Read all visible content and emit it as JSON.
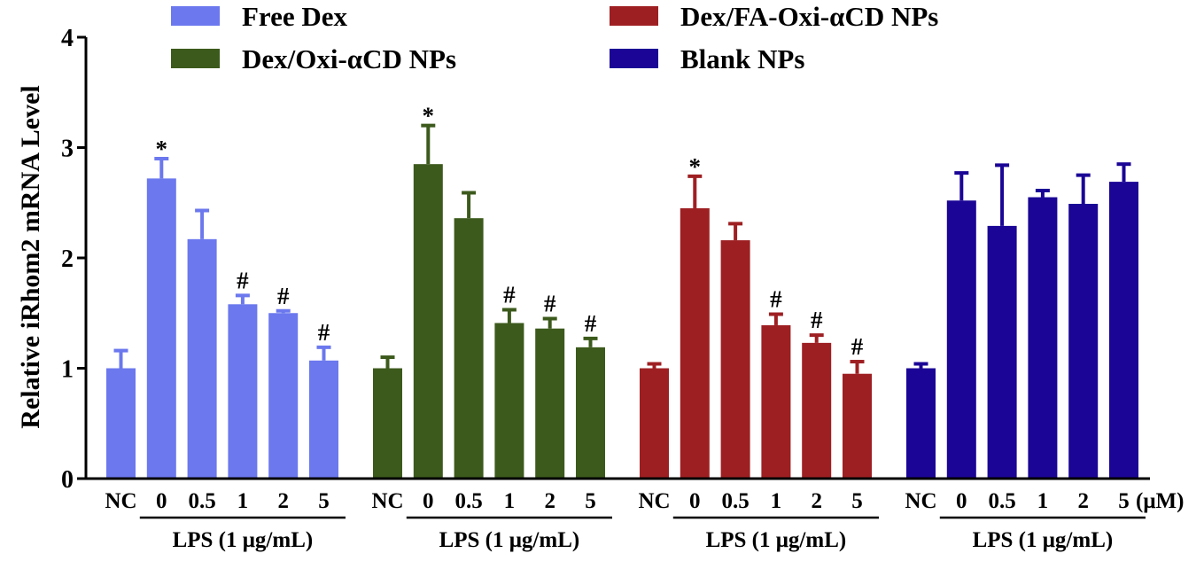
{
  "chart_data": {
    "type": "bar",
    "ylabel": "Relative iRhom2 mRNA Level",
    "ylim": [
      0,
      4
    ],
    "yticks": [
      "0",
      "1",
      "2",
      "3",
      "4"
    ],
    "categories": [
      "NC",
      "0",
      "0.5",
      "1",
      "2",
      "5"
    ],
    "group_label": "LPS (1 μg/mL)",
    "unit_label": "(μM)",
    "legend_position": "top",
    "grid": false,
    "series": [
      {
        "name": "Free Dex",
        "color": "#6b78ee",
        "values": [
          1.0,
          2.72,
          2.17,
          1.58,
          1.5,
          1.07
        ],
        "errors": [
          0.16,
          0.18,
          0.26,
          0.08,
          0.02,
          0.12
        ],
        "marks": [
          "",
          "*",
          "",
          "#",
          "#",
          "#"
        ]
      },
      {
        "name": "Dex/Oxi-αCD NPs",
        "color": "#3c5a1c",
        "values": [
          1.0,
          2.85,
          2.36,
          1.41,
          1.36,
          1.19
        ],
        "errors": [
          0.1,
          0.35,
          0.23,
          0.12,
          0.09,
          0.08
        ],
        "marks": [
          "",
          "*",
          "",
          "#",
          "#",
          "#"
        ]
      },
      {
        "name": "Dex/FA-Oxi-αCD NPs",
        "color": "#9e1f22",
        "values": [
          1.0,
          2.45,
          2.16,
          1.39,
          1.23,
          0.95
        ],
        "errors": [
          0.04,
          0.29,
          0.15,
          0.1,
          0.07,
          0.11
        ],
        "marks": [
          "",
          "*",
          "",
          "#",
          "#",
          "#"
        ]
      },
      {
        "name": "Blank NPs",
        "color": "#1a0596",
        "values": [
          1.0,
          2.52,
          2.29,
          2.55,
          2.49,
          2.69
        ],
        "errors": [
          0.04,
          0.25,
          0.55,
          0.06,
          0.26,
          0.16
        ],
        "marks": [
          "",
          "",
          "",
          "",
          "",
          ""
        ]
      }
    ]
  }
}
